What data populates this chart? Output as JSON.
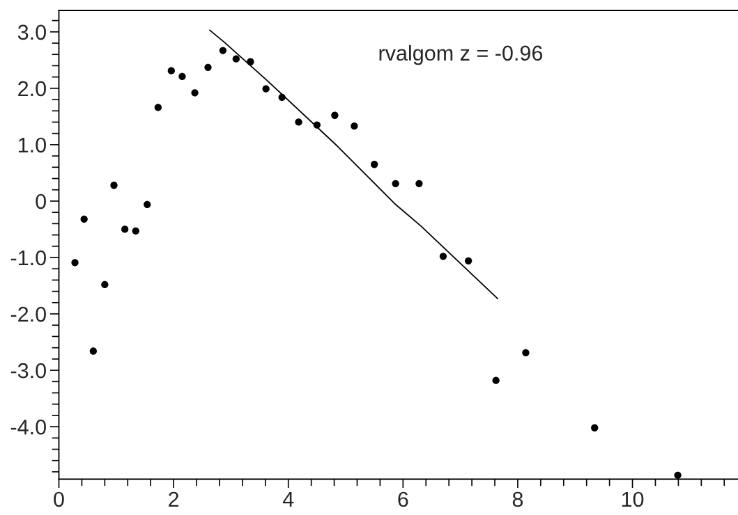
{
  "chart_data": {
    "type": "scatter",
    "x": [
      0.28,
      0.44,
      0.6,
      0.8,
      0.96,
      1.15,
      1.34,
      1.54,
      1.73,
      1.96,
      2.15,
      2.37,
      2.6,
      2.86,
      3.09,
      3.34,
      3.61,
      3.89,
      4.18,
      4.5,
      4.81,
      5.15,
      5.5,
      5.87,
      6.28,
      6.7,
      7.14,
      7.62,
      8.14,
      9.34,
      10.79
    ],
    "series": [
      {
        "color": "#000000",
        "marker": "circle",
        "values": [
          -1.09,
          -0.32,
          -2.66,
          -1.48,
          0.28,
          -0.5,
          -0.53,
          -0.06,
          1.66,
          2.31,
          2.21,
          1.92,
          2.37,
          2.67,
          2.52,
          2.47,
          1.99,
          1.84,
          1.4,
          1.35,
          1.52,
          1.33,
          0.65,
          0.31,
          0.31,
          -0.98,
          -1.06,
          -3.18,
          -2.69,
          -4.02,
          -4.86
        ]
      },
      {
        "type": "line",
        "color": "#000000",
        "marker": "none",
        "line_style": "solid",
        "x": [
          2.63,
          2.88,
          3.64,
          4.85,
          5.87,
          6.31,
          7.65
        ],
        "values": [
          3.03,
          2.82,
          2.13,
          0.98,
          -0.06,
          -0.44,
          -1.73
        ]
      }
    ],
    "annotations": [
      "rvalgom z = -0.96"
    ],
    "xlim": [
      0,
      11.84
    ],
    "ylim": [
      -4.93,
      3.38
    ],
    "xticks": [
      0,
      {
        "value": 0.4,
        "label": null
      },
      {
        "value": 0.8,
        "label": null
      },
      {
        "value": 1.2,
        "label": null
      },
      {
        "value": 1.6,
        "label": null
      },
      2,
      {
        "value": 2.4,
        "label": null
      },
      {
        "value": 2.8,
        "label": null
      },
      {
        "value": 3.2,
        "label": null
      },
      {
        "value": 3.6,
        "label": null
      },
      4,
      {
        "value": 4.4,
        "label": null
      },
      {
        "value": 4.8,
        "label": null
      },
      {
        "value": 5.2,
        "label": null
      },
      {
        "value": 5.6,
        "label": null
      },
      6,
      {
        "value": 6.4,
        "label": null
      },
      {
        "value": 6.8,
        "label": null
      },
      {
        "value": 7.2,
        "label": null
      },
      {
        "value": 7.6,
        "label": null
      },
      8,
      {
        "value": 8.4,
        "label": null
      },
      {
        "value": 8.8,
        "label": null
      },
      {
        "value": 9.2,
        "label": null
      },
      {
        "value": 9.6,
        "label": null
      },
      10,
      {
        "value": 10.4,
        "label": null
      },
      {
        "value": 10.8,
        "label": null
      },
      {
        "value": 11.2,
        "label": null
      },
      {
        "value": 11.6,
        "label": null
      }
    ],
    "yticks": [
      {
        "value": -4.8,
        "label": null
      },
      {
        "value": -4.6,
        "label": null
      },
      {
        "value": -4.4,
        "label": null
      },
      {
        "value": -4.2,
        "label": null
      },
      {
        "value": -4,
        "label": "-4.0"
      },
      {
        "value": -3.8,
        "label": null
      },
      {
        "value": -3.6,
        "label": null
      },
      {
        "value": -3.4,
        "label": null
      },
      {
        "value": -3.2,
        "label": null
      },
      {
        "value": -3,
        "label": "-3.0"
      },
      {
        "value": -2.8,
        "label": null
      },
      {
        "value": -2.6,
        "label": null
      },
      {
        "value": -2.4,
        "label": null
      },
      {
        "value": -2.2,
        "label": null
      },
      {
        "value": -2,
        "label": "-2.0"
      },
      {
        "value": -1.8,
        "label": null
      },
      {
        "value": -1.6,
        "label": null
      },
      {
        "value": -1.4,
        "label": null
      },
      {
        "value": -1.2,
        "label": null
      },
      {
        "value": -1,
        "label": "-1.0"
      },
      {
        "value": -0.8,
        "label": null
      },
      {
        "value": -0.6,
        "label": null
      },
      {
        "value": -0.4,
        "label": null
      },
      {
        "value": -0.2,
        "label": null
      },
      0,
      {
        "value": 0.2,
        "label": null
      },
      {
        "value": 0.4,
        "label": null
      },
      {
        "value": 0.6,
        "label": null
      },
      {
        "value": 0.8,
        "label": null
      },
      {
        "value": 1,
        "label": "1.0"
      },
      {
        "value": 1.2,
        "label": null
      },
      {
        "value": 1.4,
        "label": null
      },
      {
        "value": 1.6,
        "label": null
      },
      {
        "value": 1.8,
        "label": null
      },
      {
        "value": 2,
        "label": "2.0"
      },
      {
        "value": 2.2,
        "label": null
      },
      {
        "value": 2.4,
        "label": null
      },
      {
        "value": 2.6,
        "label": null
      },
      {
        "value": 2.8,
        "label": null
      },
      {
        "value": 3,
        "label": "3.0"
      },
      {
        "value": 3.2,
        "label": null
      }
    ],
    "grid": false,
    "legend": false
  }
}
